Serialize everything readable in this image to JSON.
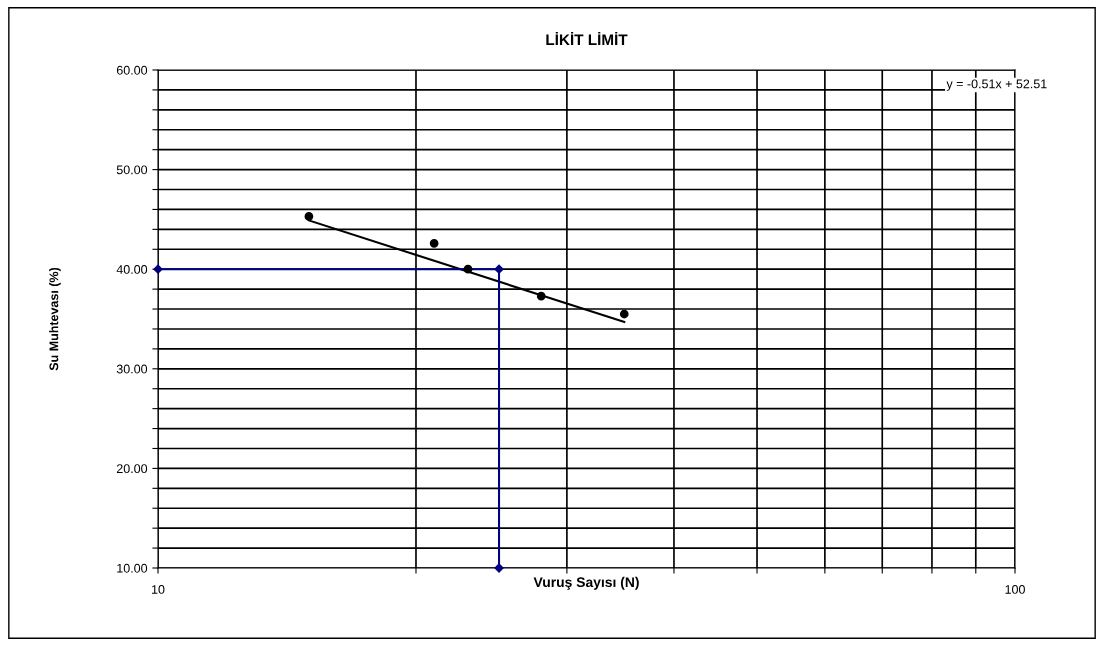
{
  "chart_data": {
    "type": "scatter",
    "title": "LİKİT LİMİT",
    "xlabel": "Vuruş Sayısı (N)",
    "ylabel": "Su Muhtevası (%)",
    "log": "x",
    "xlim": [
      10,
      100
    ],
    "ylim": [
      10,
      60
    ],
    "xticks": [
      10,
      {
        "value": 20,
        "label": null
      },
      {
        "value": 30,
        "label": null
      },
      {
        "value": 40,
        "label": null
      },
      {
        "value": 50,
        "label": null
      },
      {
        "value": 60,
        "label": null
      },
      {
        "value": 70,
        "label": null
      },
      {
        "value": 80,
        "label": null
      },
      {
        "value": 90,
        "label": null
      },
      100
    ],
    "yticks": [
      {
        "value": 10,
        "label": "10.00"
      },
      {
        "value": 12,
        "label": null
      },
      {
        "value": 14,
        "label": null
      },
      {
        "value": 16,
        "label": null
      },
      {
        "value": 18,
        "label": null
      },
      {
        "value": 20,
        "label": "20.00"
      },
      {
        "value": 22,
        "label": null
      },
      {
        "value": 24,
        "label": null
      },
      {
        "value": 26,
        "label": null
      },
      {
        "value": 28,
        "label": null
      },
      {
        "value": 30,
        "label": "30.00"
      },
      {
        "value": 32,
        "label": null
      },
      {
        "value": 34,
        "label": null
      },
      {
        "value": 36,
        "label": null
      },
      {
        "value": 38,
        "label": null
      },
      {
        "value": 40,
        "label": "40.00"
      },
      {
        "value": 42,
        "label": null
      },
      {
        "value": 44,
        "label": null
      },
      {
        "value": 46,
        "label": null
      },
      {
        "value": 48,
        "label": null
      },
      {
        "value": 50,
        "label": "50.00"
      },
      {
        "value": 52,
        "label": null
      },
      {
        "value": 54,
        "label": null
      },
      {
        "value": 56,
        "label": null
      },
      {
        "value": 58,
        "label": null
      },
      {
        "value": 60,
        "label": "60.00"
      }
    ],
    "grid": true,
    "legend": false,
    "annotations": [
      "y = -0.51x + 52.51"
    ],
    "series": [
      {
        "color": "#000000",
        "marker": "circle",
        "x": [
          15,
          21,
          23,
          28,
          35
        ],
        "values": [
          45.3,
          42.6,
          40.0,
          37.3,
          35.5
        ]
      },
      {
        "type": "line",
        "color": "#000000",
        "marker": "none",
        "x": [
          15,
          35
        ],
        "values": [
          44.9,
          34.7
        ]
      },
      {
        "type": "line",
        "color": "#000080",
        "marker": "diamond",
        "x": [
          10,
          25,
          25
        ],
        "values": [
          40,
          40,
          10
        ]
      }
    ]
  }
}
